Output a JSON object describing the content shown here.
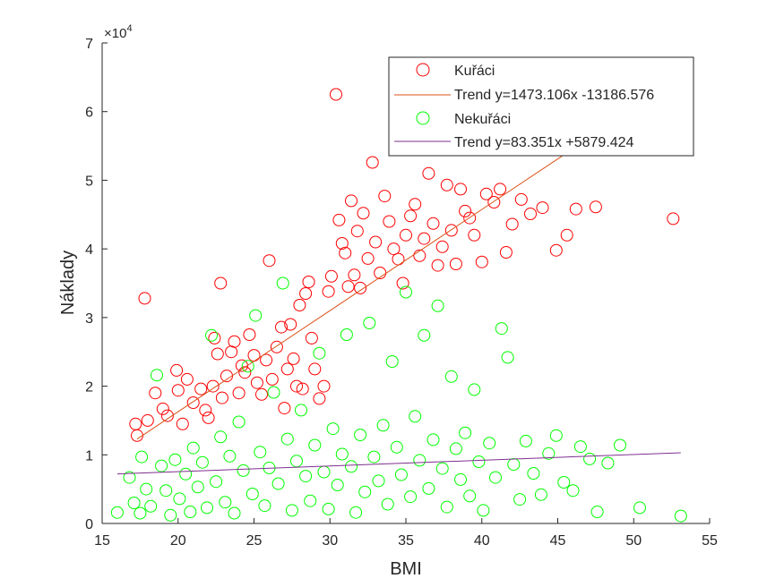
{
  "chart_data": {
    "type": "scatter",
    "title": "",
    "xlabel": "BMI",
    "ylabel": "Náklady",
    "xlim": [
      15,
      55
    ],
    "ylim": [
      0,
      70000
    ],
    "x_ticks": [
      "15",
      "20",
      "25",
      "30",
      "35",
      "40",
      "45",
      "50",
      "55"
    ],
    "y_ticks": [
      "0",
      "1",
      "2",
      "3",
      "4",
      "5",
      "6",
      "7"
    ],
    "y_exponent_label": "×10",
    "y_exponent_power": "4",
    "grid": false,
    "legend_position": "top-right",
    "series": [
      {
        "name": "Kuřáci",
        "kind": "scatter",
        "color": "#ff0000",
        "points": [
          [
            17.2,
            14500
          ],
          [
            17.3,
            12800
          ],
          [
            17.8,
            32800
          ],
          [
            18.0,
            15000
          ],
          [
            18.5,
            19000
          ],
          [
            19.0,
            16700
          ],
          [
            19.3,
            15700
          ],
          [
            19.9,
            22300
          ],
          [
            20.0,
            19400
          ],
          [
            20.3,
            14500
          ],
          [
            20.6,
            21000
          ],
          [
            21.0,
            17600
          ],
          [
            21.5,
            19600
          ],
          [
            21.8,
            16500
          ],
          [
            22.0,
            15400
          ],
          [
            22.3,
            20000
          ],
          [
            22.4,
            27000
          ],
          [
            22.6,
            24700
          ],
          [
            22.8,
            35000
          ],
          [
            22.9,
            18300
          ],
          [
            23.2,
            21500
          ],
          [
            23.5,
            25000
          ],
          [
            23.7,
            26500
          ],
          [
            24.0,
            19000
          ],
          [
            24.2,
            23000
          ],
          [
            24.4,
            22000
          ],
          [
            24.7,
            27500
          ],
          [
            25.0,
            24500
          ],
          [
            25.2,
            20500
          ],
          [
            25.5,
            18800
          ],
          [
            25.8,
            23800
          ],
          [
            26.0,
            38300
          ],
          [
            26.2,
            21000
          ],
          [
            26.5,
            25700
          ],
          [
            26.8,
            28600
          ],
          [
            27.0,
            16800
          ],
          [
            27.2,
            22500
          ],
          [
            27.4,
            29000
          ],
          [
            27.6,
            24000
          ],
          [
            27.8,
            20000
          ],
          [
            28.0,
            31800
          ],
          [
            28.2,
            19600
          ],
          [
            28.4,
            33500
          ],
          [
            28.6,
            35200
          ],
          [
            28.8,
            27000
          ],
          [
            29.0,
            22500
          ],
          [
            29.3,
            18200
          ],
          [
            29.6,
            20000
          ],
          [
            29.9,
            33800
          ],
          [
            30.1,
            36000
          ],
          [
            30.4,
            62500
          ],
          [
            30.6,
            44200
          ],
          [
            30.8,
            40800
          ],
          [
            31.0,
            39400
          ],
          [
            31.2,
            34500
          ],
          [
            31.4,
            47000
          ],
          [
            31.6,
            36200
          ],
          [
            31.8,
            42600
          ],
          [
            32.0,
            34300
          ],
          [
            32.2,
            45200
          ],
          [
            32.5,
            38600
          ],
          [
            32.8,
            52600
          ],
          [
            33.0,
            41000
          ],
          [
            33.3,
            36500
          ],
          [
            33.6,
            47700
          ],
          [
            33.9,
            44000
          ],
          [
            34.2,
            40000
          ],
          [
            34.5,
            38500
          ],
          [
            34.8,
            35000
          ],
          [
            35.0,
            42000
          ],
          [
            35.3,
            44800
          ],
          [
            35.6,
            46500
          ],
          [
            35.9,
            39000
          ],
          [
            36.2,
            41500
          ],
          [
            36.5,
            51000
          ],
          [
            36.8,
            43700
          ],
          [
            37.1,
            37600
          ],
          [
            37.4,
            40300
          ],
          [
            37.7,
            49300
          ],
          [
            38.0,
            42700
          ],
          [
            38.3,
            37800
          ],
          [
            38.6,
            48700
          ],
          [
            38.9,
            45500
          ],
          [
            39.2,
            44500
          ],
          [
            39.5,
            42000
          ],
          [
            40.0,
            38100
          ],
          [
            40.3,
            48000
          ],
          [
            40.8,
            46800
          ],
          [
            41.2,
            48700
          ],
          [
            41.6,
            39500
          ],
          [
            42.0,
            43600
          ],
          [
            42.6,
            47200
          ],
          [
            43.2,
            45100
          ],
          [
            44.0,
            46000
          ],
          [
            44.9,
            39800
          ],
          [
            45.6,
            42000
          ],
          [
            46.2,
            45800
          ],
          [
            47.5,
            46100
          ],
          [
            52.6,
            44400
          ]
        ],
        "trend": {
          "name": "Trend y=1473.106x -13186.576",
          "color": "#d95319",
          "slope": 1473.106,
          "intercept": -13186.576,
          "x_range": [
            17.3,
            45.5
          ]
        }
      },
      {
        "name": "Nekuřáci",
        "kind": "scatter",
        "color": "#00ff00",
        "points": [
          [
            16.8,
            6700
          ],
          [
            17.1,
            3000
          ],
          [
            17.5,
            1500
          ],
          [
            17.9,
            5000
          ],
          [
            18.2,
            2500
          ],
          [
            18.6,
            21600
          ],
          [
            18.9,
            8400
          ],
          [
            19.2,
            4800
          ],
          [
            19.5,
            1200
          ],
          [
            19.8,
            9300
          ],
          [
            20.1,
            3600
          ],
          [
            20.5,
            7200
          ],
          [
            20.8,
            1700
          ],
          [
            21.0,
            11000
          ],
          [
            21.3,
            5300
          ],
          [
            21.6,
            8900
          ],
          [
            21.9,
            2300
          ],
          [
            22.2,
            27400
          ],
          [
            22.5,
            6100
          ],
          [
            22.8,
            12600
          ],
          [
            23.1,
            3100
          ],
          [
            23.4,
            9800
          ],
          [
            23.7,
            1500
          ],
          [
            24.0,
            14800
          ],
          [
            24.3,
            7700
          ],
          [
            24.6,
            22900
          ],
          [
            24.9,
            4300
          ],
          [
            25.1,
            30300
          ],
          [
            25.4,
            10400
          ],
          [
            25.7,
            2600
          ],
          [
            26.0,
            8100
          ],
          [
            26.3,
            19100
          ],
          [
            26.6,
            5800
          ],
          [
            26.9,
            35000
          ],
          [
            27.2,
            12300
          ],
          [
            27.5,
            1900
          ],
          [
            27.8,
            9100
          ],
          [
            28.1,
            16500
          ],
          [
            28.4,
            6900
          ],
          [
            28.7,
            3300
          ],
          [
            29.0,
            11400
          ],
          [
            29.3,
            24800
          ],
          [
            29.6,
            7500
          ],
          [
            29.9,
            2100
          ],
          [
            30.2,
            13800
          ],
          [
            30.5,
            5600
          ],
          [
            30.8,
            10100
          ],
          [
            31.1,
            27500
          ],
          [
            31.4,
            8300
          ],
          [
            31.7,
            1600
          ],
          [
            32.0,
            12900
          ],
          [
            32.3,
            4600
          ],
          [
            32.6,
            29200
          ],
          [
            32.9,
            9700
          ],
          [
            33.2,
            6200
          ],
          [
            33.5,
            14300
          ],
          [
            33.8,
            2800
          ],
          [
            34.1,
            23600
          ],
          [
            34.4,
            11100
          ],
          [
            34.7,
            7100
          ],
          [
            35.0,
            33700
          ],
          [
            35.3,
            3900
          ],
          [
            35.6,
            15600
          ],
          [
            35.9,
            9200
          ],
          [
            36.2,
            27400
          ],
          [
            36.5,
            5100
          ],
          [
            36.8,
            12200
          ],
          [
            37.1,
            31700
          ],
          [
            37.4,
            8000
          ],
          [
            37.7,
            2400
          ],
          [
            38.0,
            21400
          ],
          [
            38.3,
            10900
          ],
          [
            38.6,
            6400
          ],
          [
            38.9,
            13200
          ],
          [
            39.2,
            4000
          ],
          [
            39.5,
            19500
          ],
          [
            39.8,
            9000
          ],
          [
            40.1,
            1900
          ],
          [
            40.5,
            11700
          ],
          [
            40.9,
            6700
          ],
          [
            41.3,
            28400
          ],
          [
            41.7,
            24200
          ],
          [
            42.1,
            8600
          ],
          [
            42.5,
            3500
          ],
          [
            42.9,
            12000
          ],
          [
            43.4,
            7300
          ],
          [
            43.9,
            4200
          ],
          [
            44.4,
            10200
          ],
          [
            44.9,
            12800
          ],
          [
            45.4,
            6000
          ],
          [
            46.0,
            4800
          ],
          [
            46.5,
            11200
          ],
          [
            47.1,
            9400
          ],
          [
            47.6,
            1700
          ],
          [
            48.3,
            8800
          ],
          [
            49.1,
            11400
          ],
          [
            50.4,
            2300
          ],
          [
            53.1,
            1100
          ],
          [
            16.0,
            1600
          ],
          [
            17.6,
            9700
          ]
        ],
        "trend": {
          "name": "Trend y=83.351x +5879.424",
          "color": "#7e2f8e",
          "slope": 83.351,
          "intercept": 5879.424,
          "x_range": [
            16.0,
            53.1
          ]
        }
      }
    ]
  }
}
